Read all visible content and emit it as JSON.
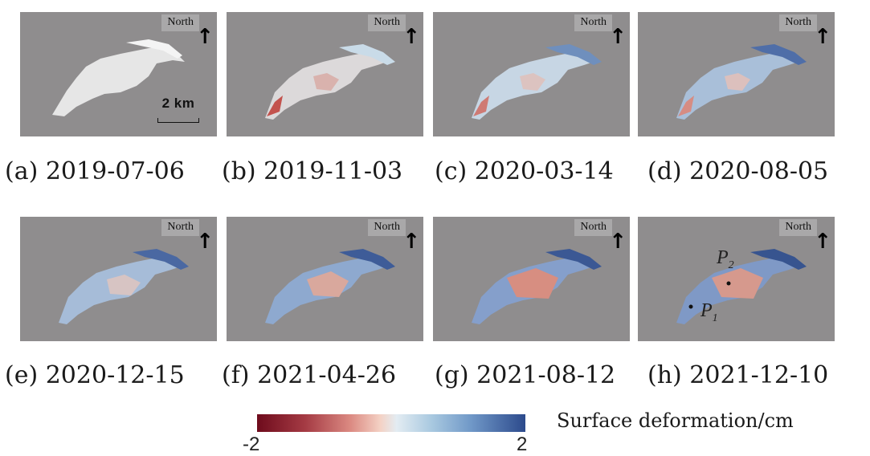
{
  "north_label": "North",
  "north_arrow": "↑",
  "scale_label": "2 km",
  "point_labels": {
    "p1": "P",
    "p1_sub": "1",
    "p2": "P",
    "p2_sub": "2"
  },
  "panels": [
    {
      "letter": "(a)",
      "date": "2019-07-06"
    },
    {
      "letter": "(b)",
      "date": "2019-11-03"
    },
    {
      "letter": "(c)",
      "date": "2020-03-14"
    },
    {
      "letter": "(d)",
      "date": "2020-08-05"
    },
    {
      "letter": "(e)",
      "date": "2020-12-15"
    },
    {
      "letter": "(f)",
      "date": "2021-04-26"
    },
    {
      "letter": "(g)",
      "date": "2021-08-12"
    },
    {
      "letter": "(h)",
      "date": "2021-12-10"
    }
  ],
  "colorbar": {
    "min_label": "-2",
    "max_label": "2",
    "title": "Surface deformation/cm",
    "colors": [
      "#6e0b1c",
      "#dc8b83",
      "#e3ecf2",
      "#6f97c7",
      "#2c4a8c"
    ]
  }
}
